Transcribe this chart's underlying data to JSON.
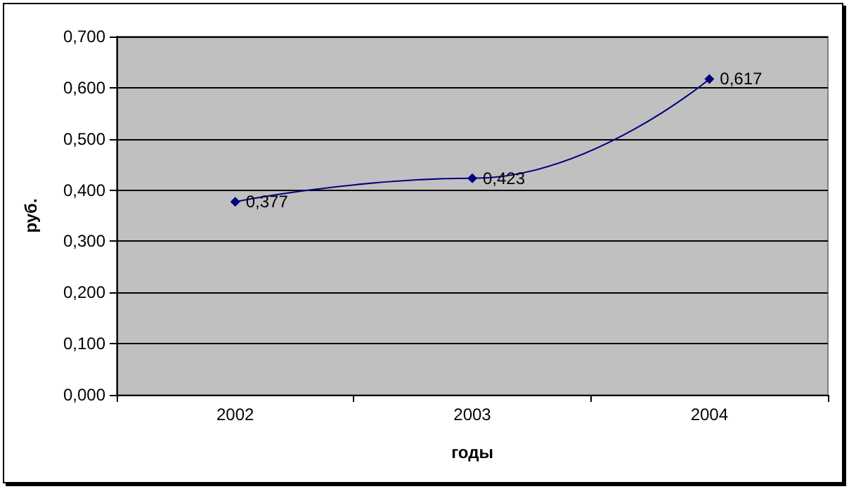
{
  "chart_data": {
    "type": "line",
    "xlabel": "годы",
    "ylabel": "руб.",
    "categories": [
      "2002",
      "2003",
      "2004"
    ],
    "series": [
      {
        "color": "#000080",
        "values": [
          0.377,
          0.423,
          0.617
        ],
        "value_labels": [
          "0,377",
          "0,423",
          "0,617"
        ]
      }
    ],
    "ylim": [
      0,
      0.7
    ],
    "yticks": [
      {
        "value": 0,
        "label": "0,000"
      },
      {
        "value": 0.1,
        "label": "0,100"
      },
      {
        "value": 0.2,
        "label": "0,200"
      },
      {
        "value": 0.3,
        "label": "0,300"
      },
      {
        "value": 0.4,
        "label": "0,400"
      },
      {
        "value": 0.5,
        "label": "0,500"
      },
      {
        "value": 0.6,
        "label": "0,600"
      },
      {
        "value": 0.7,
        "label": "0,700"
      }
    ],
    "grid": "y",
    "marker": "diamond",
    "line_style": "solid"
  }
}
